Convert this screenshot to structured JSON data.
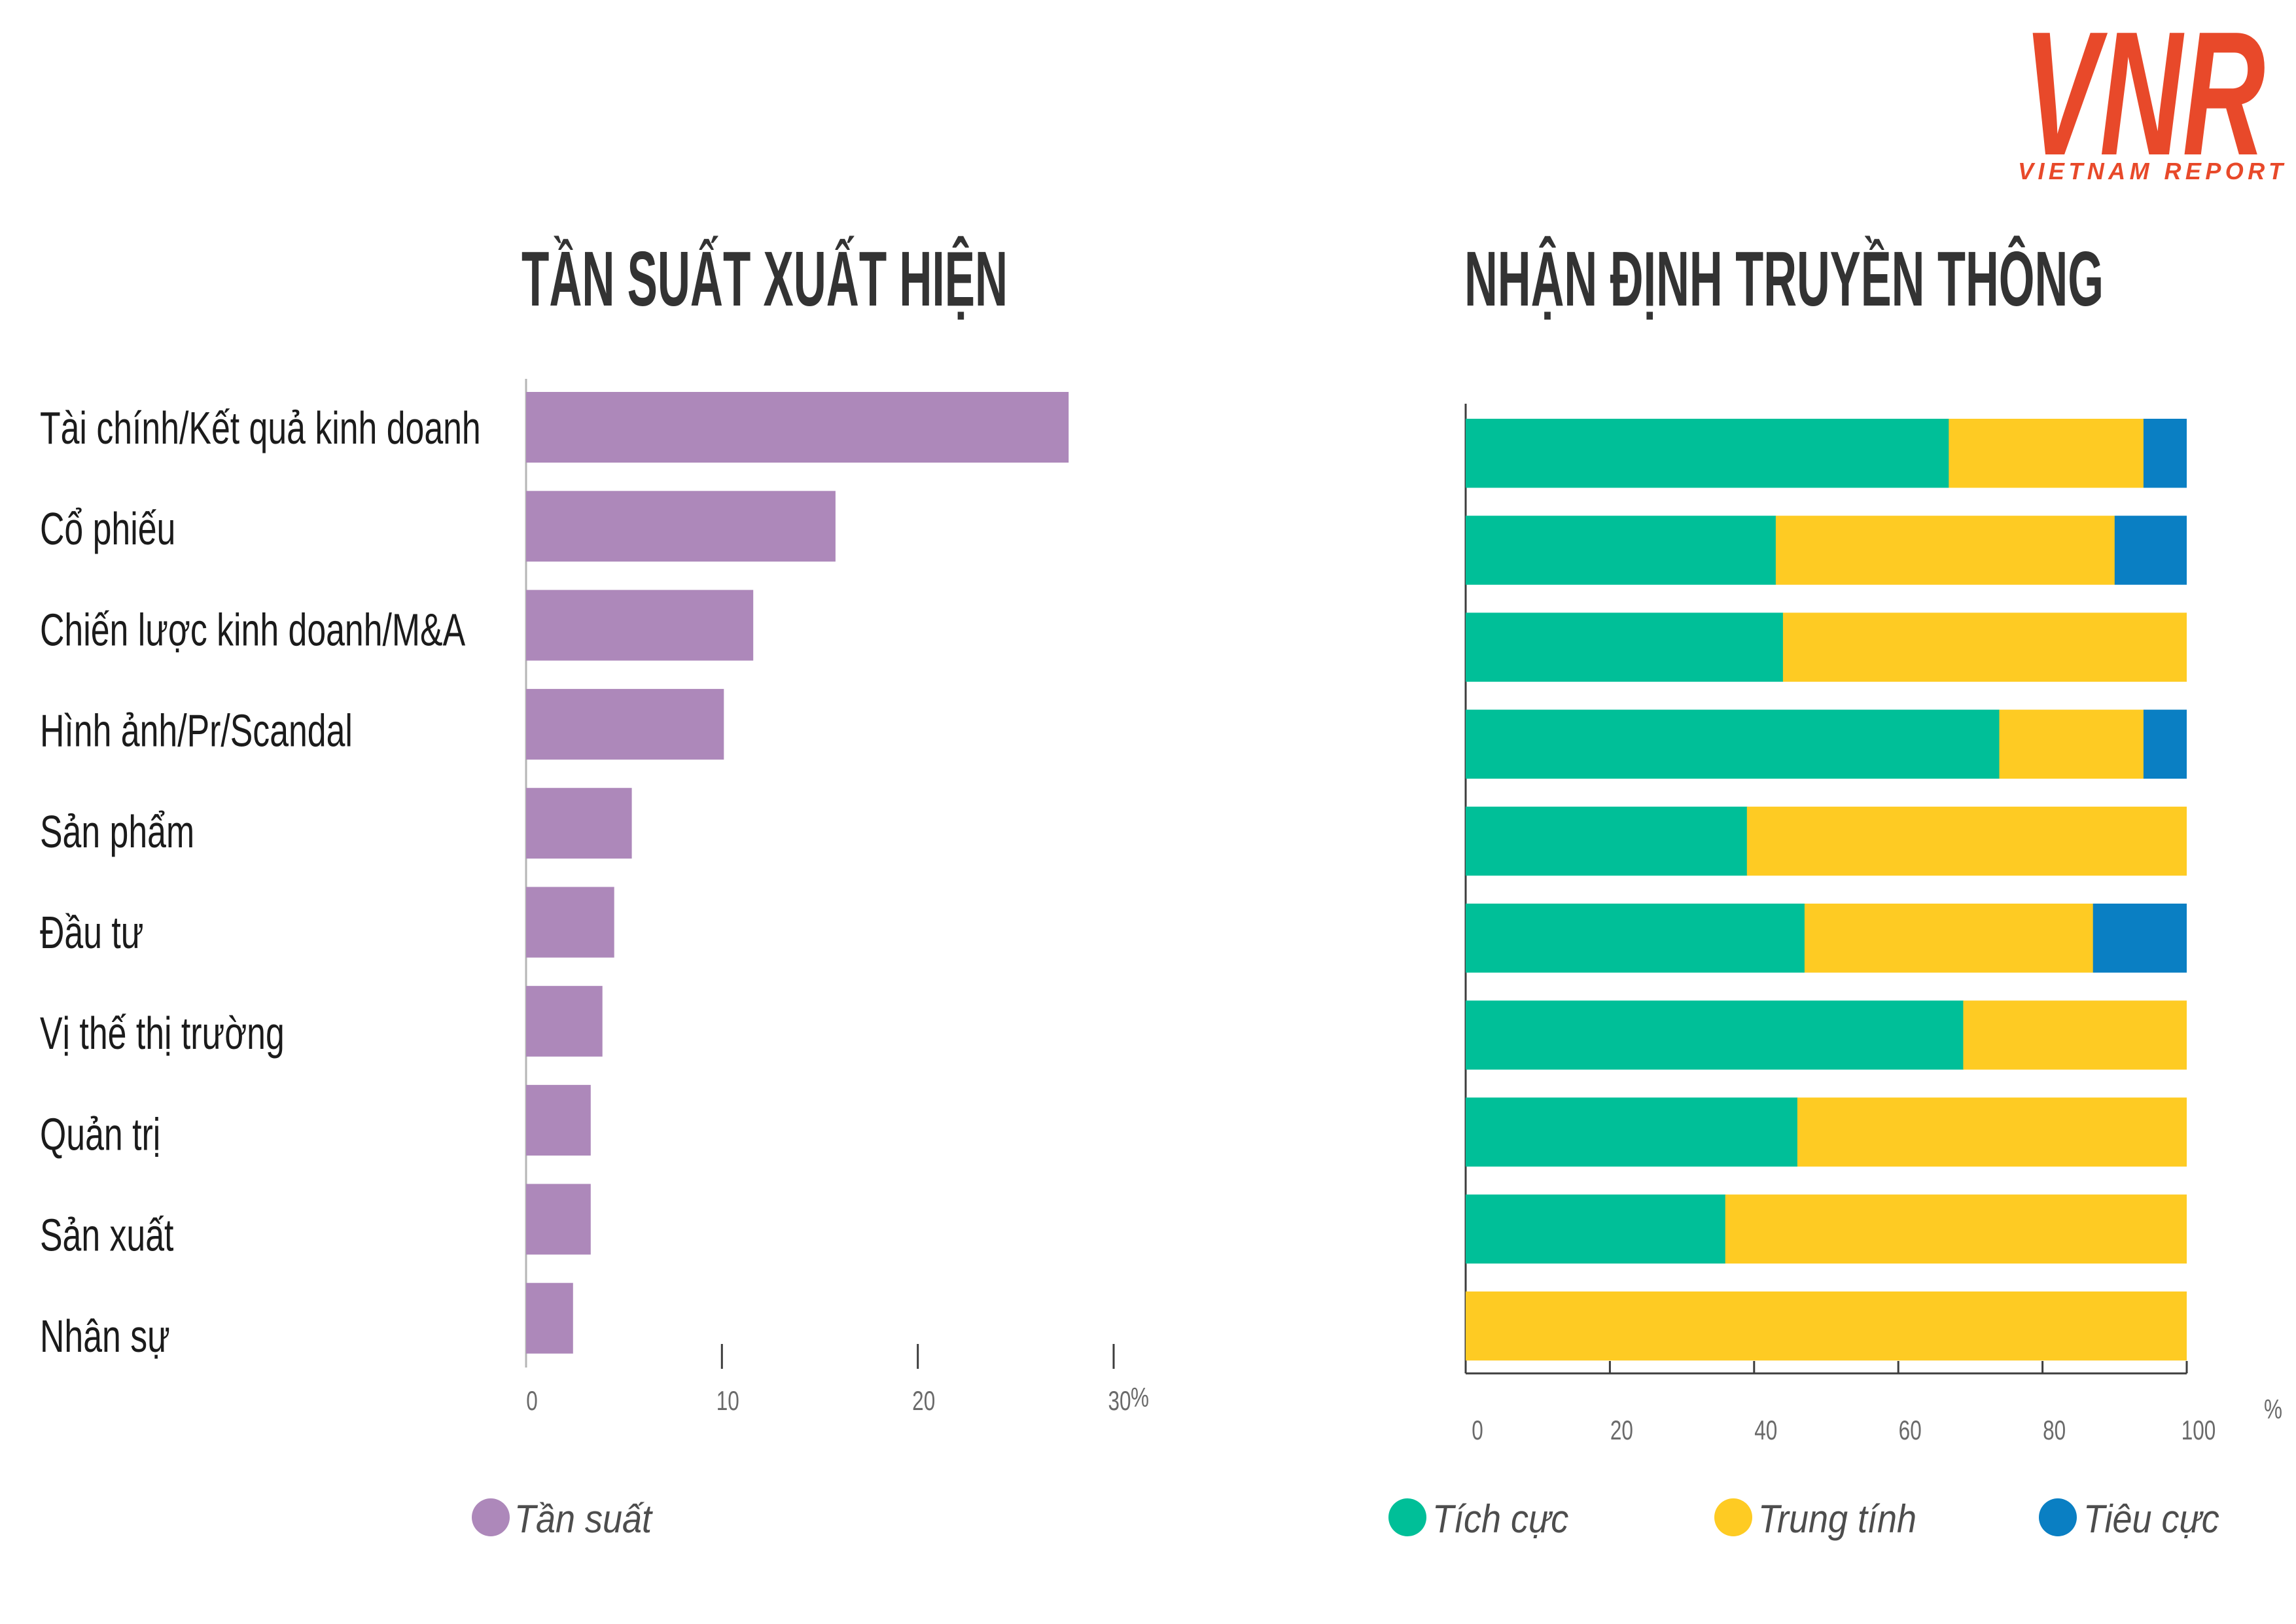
{
  "logo": {
    "mark": "VNR",
    "tagline": "VIETNAM REPORT"
  },
  "colors": {
    "brand": "#E8492A"
  },
  "chart_data": [
    {
      "type": "bar",
      "title": "TẦN SUẤT XUẤT HIỆN",
      "categories": [
        "Tài chính/Kết quả kinh doanh",
        "Cổ phiếu",
        "Chiến lược kinh doanh/M&A",
        "Hình ảnh/Pr/Scandal",
        "Sản phẩm",
        "Đầu tư",
        "Vị thế thị trường",
        "Quản trị",
        "Sản xuất",
        "Nhân sự"
      ],
      "series": [
        {
          "name": "Tần suất",
          "color": "#AD88BA",
          "values": [
            27.7,
            15.8,
            11.6,
            10.1,
            5.4,
            4.5,
            3.9,
            3.3,
            3.3,
            2.4
          ]
        }
      ],
      "xlabel": "%",
      "ylabel": "",
      "xlim": [
        0,
        30
      ],
      "xticks": [
        0,
        10,
        20,
        30
      ],
      "grid": false,
      "legend": "bottom"
    },
    {
      "type": "bar",
      "stacked": true,
      "title": "NHẬN ĐỊNH TRUYỀN THÔNG",
      "series": [
        {
          "name": "Tích cực",
          "color": "#00BF98",
          "values": [
            67,
            43,
            44,
            74,
            39,
            47,
            69,
            46,
            36,
            0
          ]
        },
        {
          "name": "Trung tính",
          "color": "#FECB23",
          "values": [
            27,
            47,
            56,
            20,
            61,
            40,
            31,
            54,
            64,
            100
          ]
        },
        {
          "name": "Tiêu cực",
          "color": "#0A7FC3",
          "values": [
            6,
            10,
            0,
            6,
            0,
            13,
            0,
            0,
            0,
            0
          ]
        }
      ],
      "xlabel": "%",
      "ylabel": "",
      "xlim": [
        0,
        100
      ],
      "xticks": [
        0,
        20,
        40,
        60,
        80,
        100
      ],
      "grid": false,
      "legend": "bottom"
    }
  ]
}
